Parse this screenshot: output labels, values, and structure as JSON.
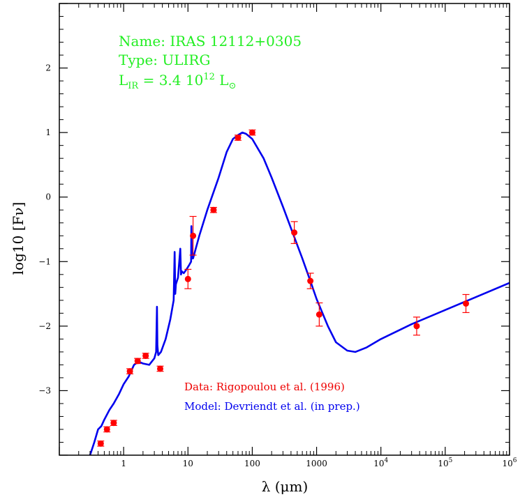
{
  "chart_data": {
    "type": "scatter",
    "title": "",
    "xlabel": "λ (μm)",
    "ylabel": "log10 [Fν]",
    "x_scale": "log",
    "xlim": [
      0.1,
      1000000
    ],
    "ylim": [
      -4,
      3
    ],
    "x_ticks": [
      {
        "value": 1,
        "label": "1"
      },
      {
        "value": 10,
        "label": "10"
      },
      {
        "value": 100,
        "label": "100"
      },
      {
        "value": 1000,
        "label": "1000"
      },
      {
        "value": 10000,
        "base": "10",
        "exp": "4"
      },
      {
        "value": 100000,
        "base": "10",
        "exp": "5"
      },
      {
        "value": 1000000,
        "base": "10",
        "exp": "6"
      }
    ],
    "y_ticks": [
      {
        "value": -3,
        "label": "−3"
      },
      {
        "value": -2,
        "label": "−2"
      },
      {
        "value": -1,
        "label": "−1"
      },
      {
        "value": 0,
        "label": "0"
      },
      {
        "value": 1,
        "label": "1"
      },
      {
        "value": 2,
        "label": "2"
      }
    ],
    "grid": false,
    "info": {
      "name": "Name: IRAS 12112+0305",
      "type": "Type: ULIRG",
      "lir_prefix": "L",
      "lir_sub": "IR",
      "lir_mid": " = 3.4 10",
      "lir_exp": "12",
      "lir_unit": " L",
      "lir_sun": "⊙"
    },
    "annotations": {
      "data_credit": "Data: Rigopoulou et al. (1996)",
      "model_credit": "Model: Devriendt et al. (in prep.)"
    },
    "series": [
      {
        "kind": "points",
        "color": "#ff0000",
        "points": [
          {
            "x": 0.44,
            "y": -3.82,
            "err": 0.04
          },
          {
            "x": 0.55,
            "y": -3.6,
            "err": 0.04
          },
          {
            "x": 0.7,
            "y": -3.5,
            "err": 0.04
          },
          {
            "x": 1.25,
            "y": -2.7,
            "err": 0.04
          },
          {
            "x": 1.65,
            "y": -2.54,
            "err": 0.04
          },
          {
            "x": 2.2,
            "y": -2.46,
            "err": 0.04
          },
          {
            "x": 3.7,
            "y": -2.66,
            "err": 0.04
          },
          {
            "x": 10,
            "y": -1.27,
            "err": 0.15
          },
          {
            "x": 12,
            "y": -0.6,
            "err": 0.3
          },
          {
            "x": 25,
            "y": -0.2,
            "err": 0.04
          },
          {
            "x": 60,
            "y": 0.92,
            "err": 0.04
          },
          {
            "x": 100,
            "y": 1.0,
            "err": 0.04
          },
          {
            "x": 450,
            "y": -0.55,
            "err": 0.17
          },
          {
            "x": 800,
            "y": -1.3,
            "err": 0.12
          },
          {
            "x": 1100,
            "y": -1.82,
            "err": 0.18
          },
          {
            "x": 36000,
            "y": -2.0,
            "err": 0.14
          },
          {
            "x": 210000,
            "y": -1.65,
            "err": 0.14
          }
        ]
      },
      {
        "kind": "line",
        "color": "#0000ee",
        "x": [
          0.3,
          0.35,
          0.4,
          0.45,
          0.5,
          0.6,
          0.7,
          0.85,
          1.0,
          1.2,
          1.45,
          1.7,
          2.0,
          2.5,
          3.0,
          3.2,
          3.3,
          3.35,
          3.45,
          3.8,
          4.5,
          5.3,
          6.0,
          6.2,
          6.35,
          6.5,
          7.0,
          7.6,
          7.8,
          8.0,
          8.6,
          9.5,
          10.5,
          11.2,
          11.3,
          11.5,
          12,
          15,
          20,
          30,
          40,
          50,
          60,
          70,
          80,
          100,
          150,
          200,
          300,
          450,
          600,
          800,
          1000,
          1500,
          2000,
          3000,
          4000,
          6000,
          10000,
          30000,
          100000,
          300000,
          1000000
        ],
        "y": [
          -4.0,
          -3.8,
          -3.6,
          -3.55,
          -3.45,
          -3.3,
          -3.2,
          -3.05,
          -2.9,
          -2.78,
          -2.6,
          -2.55,
          -2.58,
          -2.6,
          -2.5,
          -2.4,
          -1.7,
          -2.3,
          -2.45,
          -2.4,
          -2.2,
          -1.9,
          -1.6,
          -0.85,
          -1.5,
          -1.35,
          -1.25,
          -0.8,
          -1.2,
          -1.15,
          -1.18,
          -1.12,
          -1.05,
          -1.0,
          -0.45,
          -0.95,
          -0.95,
          -0.6,
          -0.2,
          0.3,
          0.7,
          0.9,
          0.96,
          1.0,
          0.98,
          0.9,
          0.6,
          0.3,
          -0.15,
          -0.62,
          -0.95,
          -1.3,
          -1.58,
          -2.0,
          -2.25,
          -2.38,
          -2.4,
          -2.33,
          -2.2,
          -1.97,
          -1.75,
          -1.55,
          -1.33
        ]
      }
    ]
  }
}
